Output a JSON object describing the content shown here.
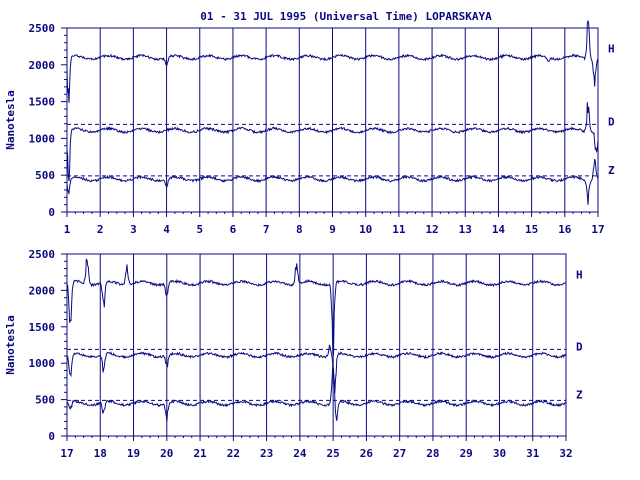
{
  "title": "01 - 31 JUL 1995 (Universal Time) LOPARSKAYA",
  "colors": {
    "ink": "#0a0a80",
    "background": "#ffffff"
  },
  "chart_data": [
    {
      "type": "line",
      "title": "01 - 31 JUL 1995 (Universal Time) LOPARSKAYA",
      "ylabel": "Nanotesla",
      "xlabel": "",
      "xlim": [
        1,
        17
      ],
      "ylim": [
        0,
        2500
      ],
      "xticks": [
        1,
        2,
        3,
        4,
        5,
        6,
        7,
        8,
        9,
        10,
        11,
        12,
        13,
        14,
        15,
        16,
        17
      ],
      "yticks": [
        0,
        500,
        1000,
        1500,
        2000,
        2500
      ],
      "grid": "vertical day lines",
      "series": [
        {
          "name": "H",
          "baseline": 2100,
          "reference": null,
          "events": [
            {
              "day": 1.05,
              "level": 1550
            },
            {
              "day": 4.0,
              "level": 1980
            },
            {
              "day": 15.5,
              "level": 2050
            },
            {
              "day": 16.7,
              "level": 2620
            },
            {
              "day": 16.9,
              "level": 1800
            }
          ]
        },
        {
          "name": "D",
          "baseline": 1110,
          "reference": 1190,
          "events": [
            {
              "day": 1.05,
              "level": 400
            },
            {
              "day": 16.7,
              "level": 1500
            },
            {
              "day": 16.95,
              "level": 800
            }
          ]
        },
        {
          "name": "Z",
          "baseline": 450,
          "reference": 490,
          "events": [
            {
              "day": 1.05,
              "level": 250
            },
            {
              "day": 4.0,
              "level": 350
            },
            {
              "day": 16.7,
              "level": 200
            },
            {
              "day": 16.9,
              "level": 700
            }
          ]
        }
      ]
    },
    {
      "type": "line",
      "title": "",
      "ylabel": "Nanotesla",
      "xlabel": "",
      "xlim": [
        17,
        32
      ],
      "ylim": [
        0,
        2500
      ],
      "xticks": [
        17,
        18,
        19,
        20,
        21,
        22,
        23,
        24,
        25,
        26,
        27,
        28,
        29,
        30,
        31,
        32
      ],
      "yticks": [
        0,
        500,
        1000,
        1500,
        2000,
        2500
      ],
      "grid": "vertical day lines",
      "series": [
        {
          "name": "H",
          "baseline": 2100,
          "reference": null,
          "events": [
            {
              "day": 17.1,
              "level": 1500
            },
            {
              "day": 17.6,
              "level": 2450
            },
            {
              "day": 18.1,
              "level": 1750
            },
            {
              "day": 18.8,
              "level": 2350
            },
            {
              "day": 20.0,
              "level": 1900
            },
            {
              "day": 23.9,
              "level": 2350
            },
            {
              "day": 25.0,
              "level": 1300
            }
          ]
        },
        {
          "name": "D",
          "baseline": 1110,
          "reference": 1190,
          "events": [
            {
              "day": 17.1,
              "level": 800
            },
            {
              "day": 18.1,
              "level": 900
            },
            {
              "day": 20.0,
              "level": 950
            },
            {
              "day": 24.9,
              "level": 1250
            },
            {
              "day": 25.05,
              "level": 650
            }
          ]
        },
        {
          "name": "Z",
          "baseline": 450,
          "reference": 490,
          "events": [
            {
              "day": 17.1,
              "level": 350
            },
            {
              "day": 18.1,
              "level": 300
            },
            {
              "day": 20.0,
              "level": 250
            },
            {
              "day": 25.0,
              "level": 950
            },
            {
              "day": 25.1,
              "level": 200
            }
          ]
        }
      ]
    }
  ]
}
